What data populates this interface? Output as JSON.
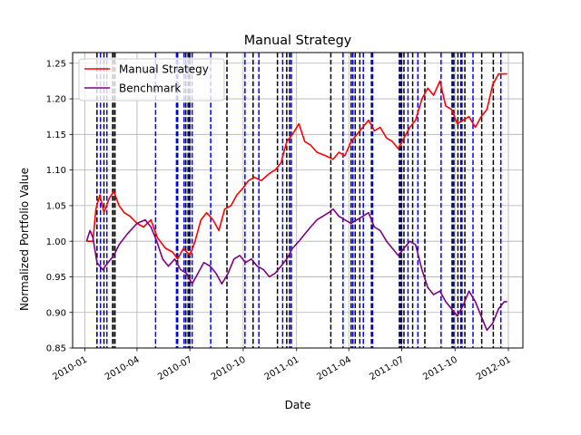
{
  "chart_data": {
    "type": "line",
    "title": "Manual Strategy",
    "xlabel": "Date",
    "ylabel": "Normalized Portfolio Value",
    "x_range": [
      "2009-12-11",
      "2012-01-26"
    ],
    "ylim": [
      0.85,
      1.265
    ],
    "x_ticks": [
      {
        "date": "2010-01-01",
        "label": "2010-01"
      },
      {
        "date": "2010-04-01",
        "label": "2010-04"
      },
      {
        "date": "2010-07-01",
        "label": "2010-07"
      },
      {
        "date": "2010-10-01",
        "label": "2010-10"
      },
      {
        "date": "2011-01-01",
        "label": "2011-01"
      },
      {
        "date": "2011-04-01",
        "label": "2011-04"
      },
      {
        "date": "2011-07-01",
        "label": "2011-07"
      },
      {
        "date": "2011-10-01",
        "label": "2011-10"
      },
      {
        "date": "2012-01-01",
        "label": "2012-01"
      }
    ],
    "y_ticks": [
      {
        "value": 0.85,
        "label": "0.85"
      },
      {
        "value": 0.9,
        "label": "0.90"
      },
      {
        "value": 0.95,
        "label": "0.95"
      },
      {
        "value": 1.0,
        "label": "1.00"
      },
      {
        "value": 1.05,
        "label": "1.05"
      },
      {
        "value": 1.1,
        "label": "1.10"
      },
      {
        "value": 1.15,
        "label": "1.15"
      },
      {
        "value": 1.2,
        "label": "1.20"
      },
      {
        "value": 1.25,
        "label": "1.25"
      }
    ],
    "grid": true,
    "legend_position": "top-left",
    "series": [
      {
        "name": "Manual Strategy",
        "color": "#ff0000",
        "points": [
          [
            "2010-01-04",
            1.0
          ],
          [
            "2010-01-15",
            1.0
          ],
          [
            "2010-01-20",
            1.045
          ],
          [
            "2010-01-27",
            1.065
          ],
          [
            "2010-02-03",
            1.04
          ],
          [
            "2010-02-12",
            1.06
          ],
          [
            "2010-02-20",
            1.07
          ],
          [
            "2010-03-01",
            1.05
          ],
          [
            "2010-03-10",
            1.04
          ],
          [
            "2010-03-20",
            1.035
          ],
          [
            "2010-04-01",
            1.025
          ],
          [
            "2010-04-12",
            1.02
          ],
          [
            "2010-04-25",
            1.03
          ],
          [
            "2010-05-06",
            1.005
          ],
          [
            "2010-05-20",
            0.99
          ],
          [
            "2010-06-01",
            0.985
          ],
          [
            "2010-06-10",
            0.975
          ],
          [
            "2010-06-20",
            0.99
          ],
          [
            "2010-07-01",
            0.98
          ],
          [
            "2010-07-10",
            1.0
          ],
          [
            "2010-07-20",
            1.03
          ],
          [
            "2010-07-30",
            1.04
          ],
          [
            "2010-08-10",
            1.03
          ],
          [
            "2010-08-20",
            1.015
          ],
          [
            "2010-08-30",
            1.045
          ],
          [
            "2010-09-10",
            1.05
          ],
          [
            "2010-09-20",
            1.065
          ],
          [
            "2010-10-01",
            1.075
          ],
          [
            "2010-10-10",
            1.085
          ],
          [
            "2010-10-20",
            1.09
          ],
          [
            "2010-11-01",
            1.085
          ],
          [
            "2010-11-15",
            1.095
          ],
          [
            "2010-11-25",
            1.1
          ],
          [
            "2010-12-05",
            1.11
          ],
          [
            "2010-12-15",
            1.14
          ],
          [
            "2010-12-25",
            1.15
          ],
          [
            "2011-01-05",
            1.165
          ],
          [
            "2011-01-15",
            1.14
          ],
          [
            "2011-01-25",
            1.135
          ],
          [
            "2011-02-05",
            1.125
          ],
          [
            "2011-02-20",
            1.12
          ],
          [
            "2011-03-05",
            1.115
          ],
          [
            "2011-03-15",
            1.125
          ],
          [
            "2011-03-25",
            1.12
          ],
          [
            "2011-04-05",
            1.14
          ],
          [
            "2011-04-15",
            1.15
          ],
          [
            "2011-04-25",
            1.16
          ],
          [
            "2011-05-05",
            1.17
          ],
          [
            "2011-05-15",
            1.155
          ],
          [
            "2011-05-25",
            1.16
          ],
          [
            "2011-06-05",
            1.145
          ],
          [
            "2011-06-15",
            1.14
          ],
          [
            "2011-06-25",
            1.13
          ],
          [
            "2011-07-05",
            1.145
          ],
          [
            "2011-07-15",
            1.16
          ],
          [
            "2011-07-25",
            1.17
          ],
          [
            "2011-08-05",
            1.2
          ],
          [
            "2011-08-15",
            1.215
          ],
          [
            "2011-08-25",
            1.205
          ],
          [
            "2011-09-05",
            1.225
          ],
          [
            "2011-09-15",
            1.19
          ],
          [
            "2011-09-25",
            1.185
          ],
          [
            "2011-10-05",
            1.165
          ],
          [
            "2011-10-15",
            1.17
          ],
          [
            "2011-10-25",
            1.175
          ],
          [
            "2011-11-05",
            1.16
          ],
          [
            "2011-11-15",
            1.175
          ],
          [
            "2011-11-25",
            1.185
          ],
          [
            "2011-12-05",
            1.22
          ],
          [
            "2011-12-15",
            1.235
          ],
          [
            "2011-12-25",
            1.235
          ],
          [
            "2011-12-30",
            1.235
          ]
        ]
      },
      {
        "name": "Benchmark",
        "color": "#800080",
        "points": [
          [
            "2010-01-04",
            1.0
          ],
          [
            "2010-01-10",
            1.015
          ],
          [
            "2010-01-15",
            1.005
          ],
          [
            "2010-01-22",
            0.97
          ],
          [
            "2010-02-01",
            0.96
          ],
          [
            "2010-02-10",
            0.97
          ],
          [
            "2010-02-20",
            0.98
          ],
          [
            "2010-03-01",
            0.995
          ],
          [
            "2010-03-15",
            1.01
          ],
          [
            "2010-04-01",
            1.025
          ],
          [
            "2010-04-15",
            1.03
          ],
          [
            "2010-04-25",
            1.02
          ],
          [
            "2010-05-05",
            1.0
          ],
          [
            "2010-05-15",
            0.975
          ],
          [
            "2010-05-25",
            0.965
          ],
          [
            "2010-06-05",
            0.975
          ],
          [
            "2010-06-15",
            0.96
          ],
          [
            "2010-06-25",
            0.955
          ],
          [
            "2010-07-05",
            0.94
          ],
          [
            "2010-07-15",
            0.955
          ],
          [
            "2010-07-25",
            0.97
          ],
          [
            "2010-08-05",
            0.965
          ],
          [
            "2010-08-15",
            0.955
          ],
          [
            "2010-08-25",
            0.94
          ],
          [
            "2010-09-05",
            0.955
          ],
          [
            "2010-09-15",
            0.975
          ],
          [
            "2010-09-25",
            0.98
          ],
          [
            "2010-10-05",
            0.97
          ],
          [
            "2010-10-15",
            0.975
          ],
          [
            "2010-10-25",
            0.965
          ],
          [
            "2010-11-05",
            0.96
          ],
          [
            "2010-11-15",
            0.95
          ],
          [
            "2010-11-25",
            0.955
          ],
          [
            "2010-12-05",
            0.965
          ],
          [
            "2010-12-15",
            0.975
          ],
          [
            "2010-12-25",
            0.99
          ],
          [
            "2011-01-05",
            1.0
          ],
          [
            "2011-01-15",
            1.01
          ],
          [
            "2011-01-25",
            1.02
          ],
          [
            "2011-02-05",
            1.03
          ],
          [
            "2011-02-15",
            1.035
          ],
          [
            "2011-02-25",
            1.04
          ],
          [
            "2011-03-05",
            1.045
          ],
          [
            "2011-03-15",
            1.035
          ],
          [
            "2011-03-25",
            1.03
          ],
          [
            "2011-04-05",
            1.025
          ],
          [
            "2011-04-15",
            1.03
          ],
          [
            "2011-04-25",
            1.035
          ],
          [
            "2011-05-05",
            1.04
          ],
          [
            "2011-05-15",
            1.02
          ],
          [
            "2011-05-25",
            1.015
          ],
          [
            "2011-06-05",
            1.0
          ],
          [
            "2011-06-15",
            0.99
          ],
          [
            "2011-06-25",
            0.98
          ],
          [
            "2011-07-05",
            0.99
          ],
          [
            "2011-07-15",
            1.0
          ],
          [
            "2011-07-25",
            0.995
          ],
          [
            "2011-08-05",
            0.96
          ],
          [
            "2011-08-15",
            0.935
          ],
          [
            "2011-08-25",
            0.925
          ],
          [
            "2011-09-05",
            0.93
          ],
          [
            "2011-09-15",
            0.915
          ],
          [
            "2011-09-25",
            0.905
          ],
          [
            "2011-10-05",
            0.895
          ],
          [
            "2011-10-15",
            0.91
          ],
          [
            "2011-10-25",
            0.93
          ],
          [
            "2011-11-05",
            0.915
          ],
          [
            "2011-11-15",
            0.895
          ],
          [
            "2011-11-25",
            0.875
          ],
          [
            "2011-12-05",
            0.885
          ],
          [
            "2011-12-15",
            0.905
          ],
          [
            "2011-12-25",
            0.915
          ],
          [
            "2011-12-30",
            0.915
          ]
        ]
      }
    ],
    "vertical_markers": [
      {
        "color": "#000000",
        "dates": [
          "2010-01-22",
          "2010-02-03",
          "2010-02-18",
          "2010-02-19",
          "2010-02-22",
          "2010-06-10",
          "2010-06-24",
          "2010-06-28",
          "2010-07-01",
          "2010-09-03",
          "2010-10-18",
          "2010-11-29",
          "2010-12-15",
          "2010-12-20",
          "2011-03-01",
          "2011-04-05",
          "2011-04-12",
          "2011-04-20",
          "2011-05-10",
          "2011-06-29",
          "2011-07-01",
          "2011-07-05",
          "2011-07-20",
          "2011-08-10",
          "2011-09-26",
          "2011-09-29",
          "2011-10-06",
          "2011-10-11",
          "2011-10-18",
          "2011-11-16",
          "2011-12-06"
        ]
      },
      {
        "color": "#0000ff",
        "dates": [
          "2010-01-28",
          "2010-02-08",
          "2010-05-03",
          "2010-06-08",
          "2010-06-21",
          "2010-06-29",
          "2010-07-05",
          "2010-08-06",
          "2010-10-04",
          "2010-10-28",
          "2010-12-08",
          "2010-12-23",
          "2011-03-22",
          "2011-04-08",
          "2011-04-26",
          "2011-05-12",
          "2011-06-27",
          "2011-07-12",
          "2011-07-29",
          "2011-09-07",
          "2011-09-28",
          "2011-10-13",
          "2011-11-01",
          "2011-12-19"
        ]
      }
    ]
  }
}
